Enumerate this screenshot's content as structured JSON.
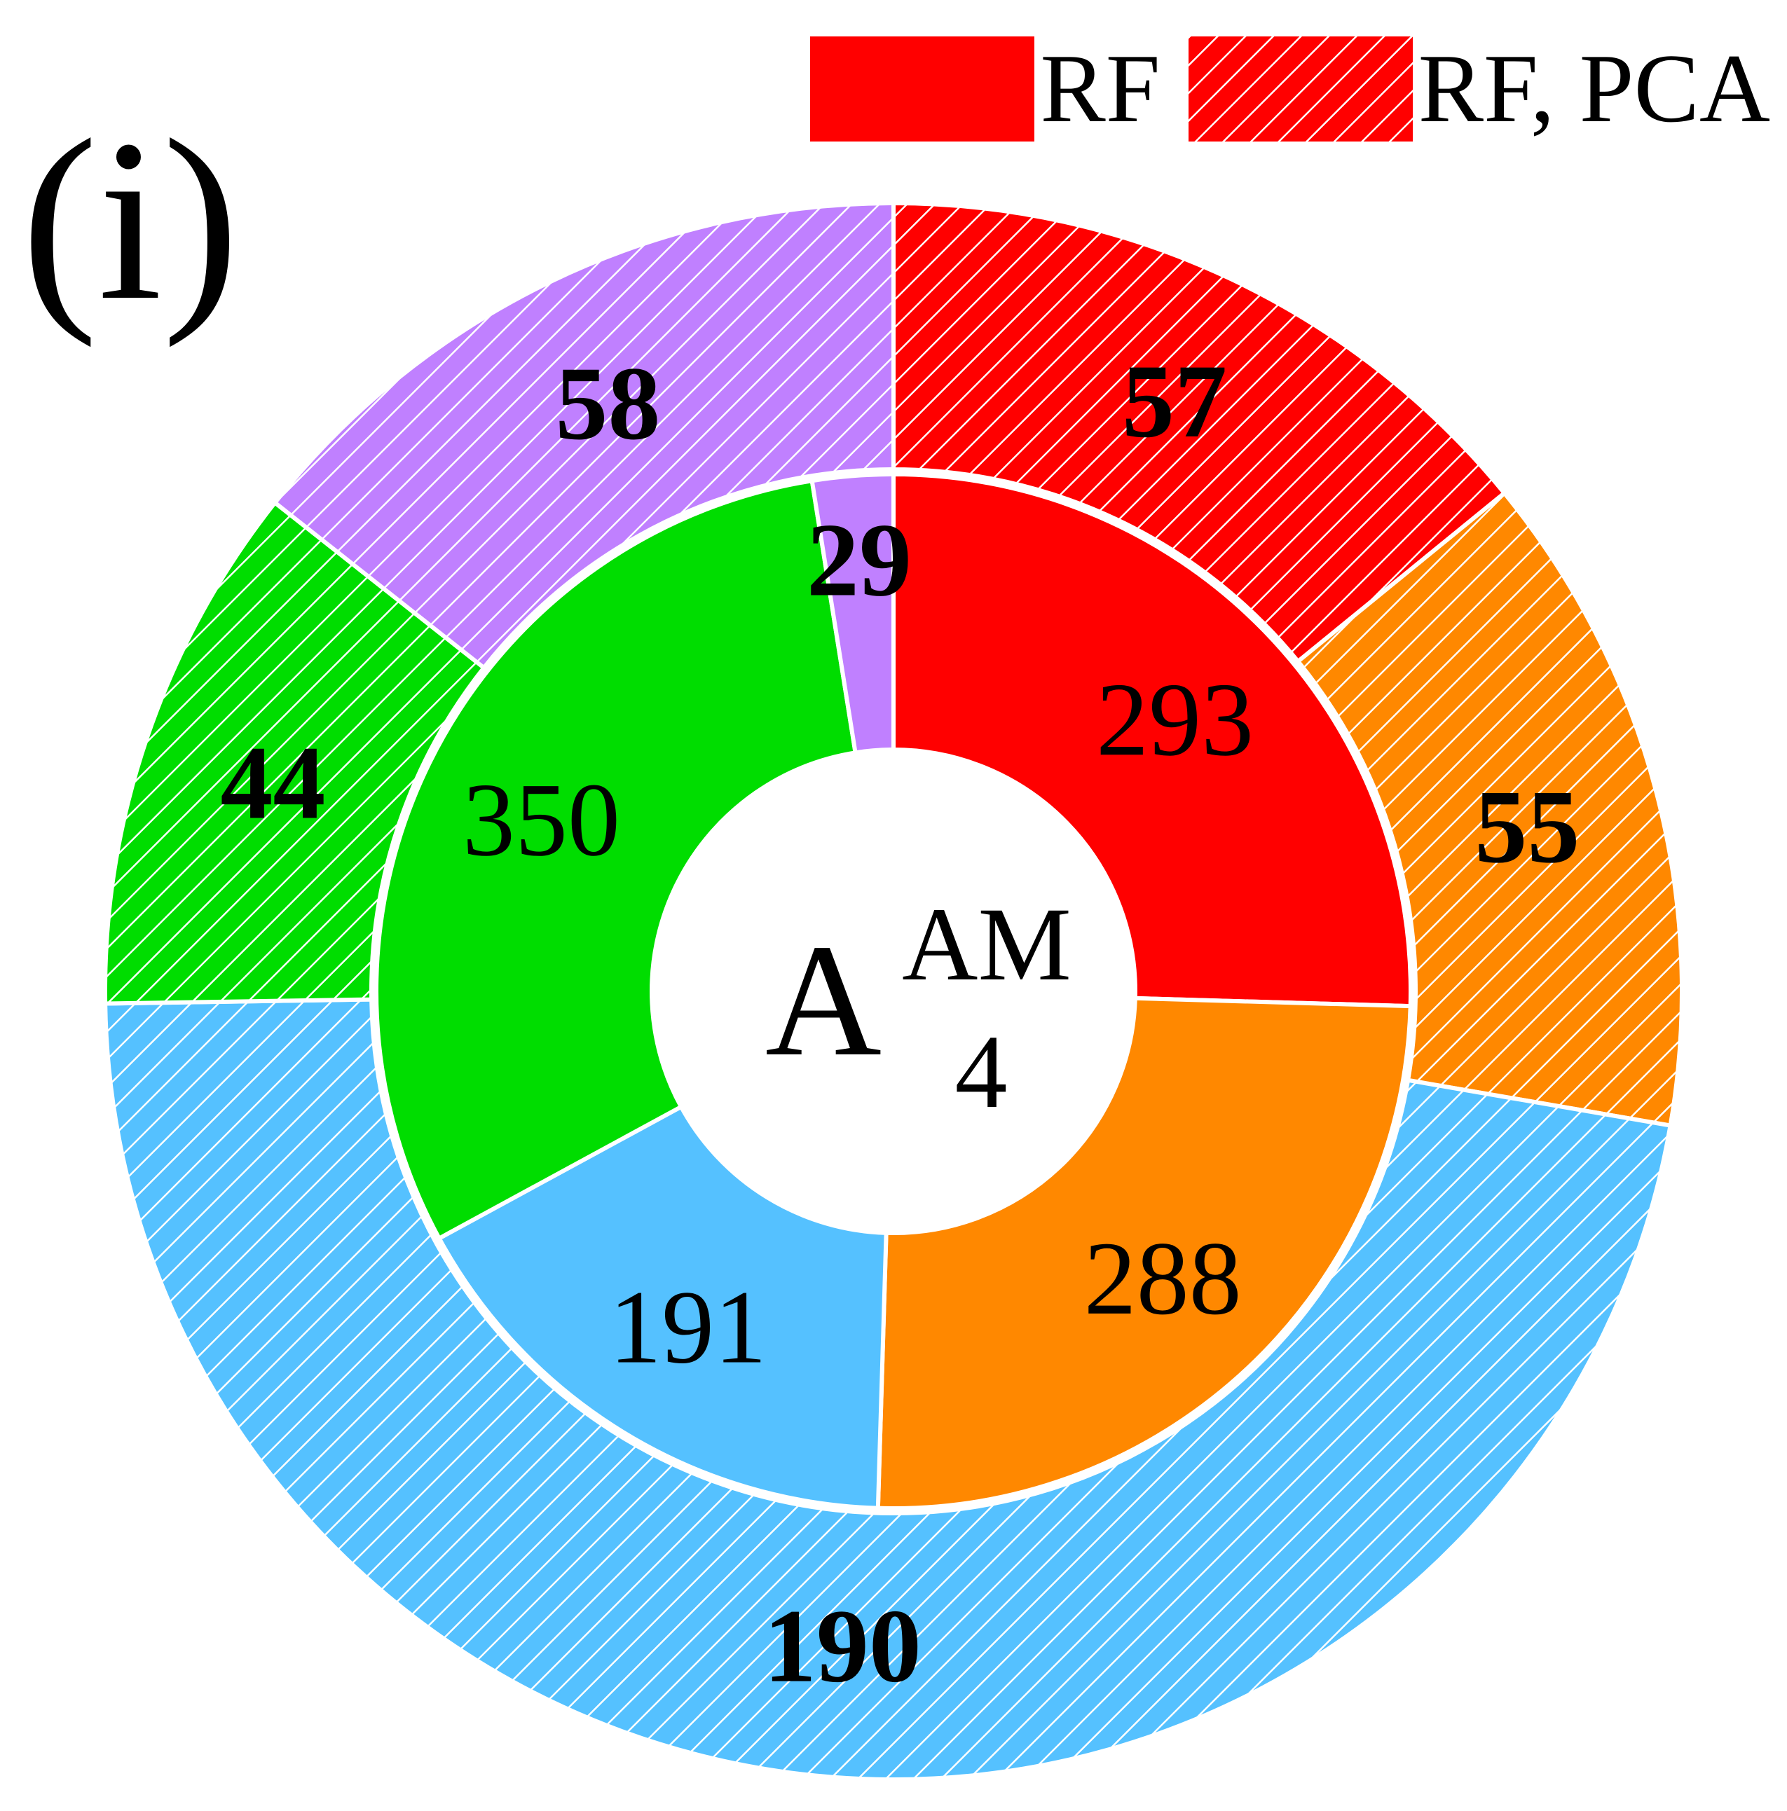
{
  "panel_label": "(i)",
  "center_label": {
    "main": "A",
    "superscript": "AM",
    "subscript": "4"
  },
  "colors": {
    "red": "#ff0000",
    "orange": "#ff8800",
    "blue": "#55c1ff",
    "green": "#00dd00",
    "purple": "#c080ff",
    "separator": "#ffffff"
  },
  "legend": [
    {
      "label": "RF",
      "color": "#ff0000",
      "pattern": "solid"
    },
    {
      "label": "RF, PCA",
      "color": "#ff0000",
      "pattern": "hatched"
    }
  ],
  "chart_data": {
    "type": "pie",
    "style": "nested donut",
    "series": [
      {
        "name": "RF",
        "ring": "inner",
        "pattern": "solid",
        "values": [
          {
            "value": 293,
            "color": "#ff0000"
          },
          {
            "value": 288,
            "color": "#ff8800"
          },
          {
            "value": 191,
            "color": "#55c1ff"
          },
          {
            "value": 350,
            "color": "#00dd00"
          },
          {
            "value": 29,
            "color": "#c080ff"
          }
        ]
      },
      {
        "name": "RF, PCA",
        "ring": "outer",
        "pattern": "hatched",
        "values": [
          {
            "value": 57,
            "color": "#ff0000"
          },
          {
            "value": 55,
            "color": "#ff8800"
          },
          {
            "value": 190,
            "color": "#55c1ff"
          },
          {
            "value": 44,
            "color": "#00dd00"
          },
          {
            "value": 58,
            "color": "#c080ff"
          }
        ]
      }
    ],
    "start": "top",
    "direction": "clockwise",
    "legend_position": "top-right"
  }
}
